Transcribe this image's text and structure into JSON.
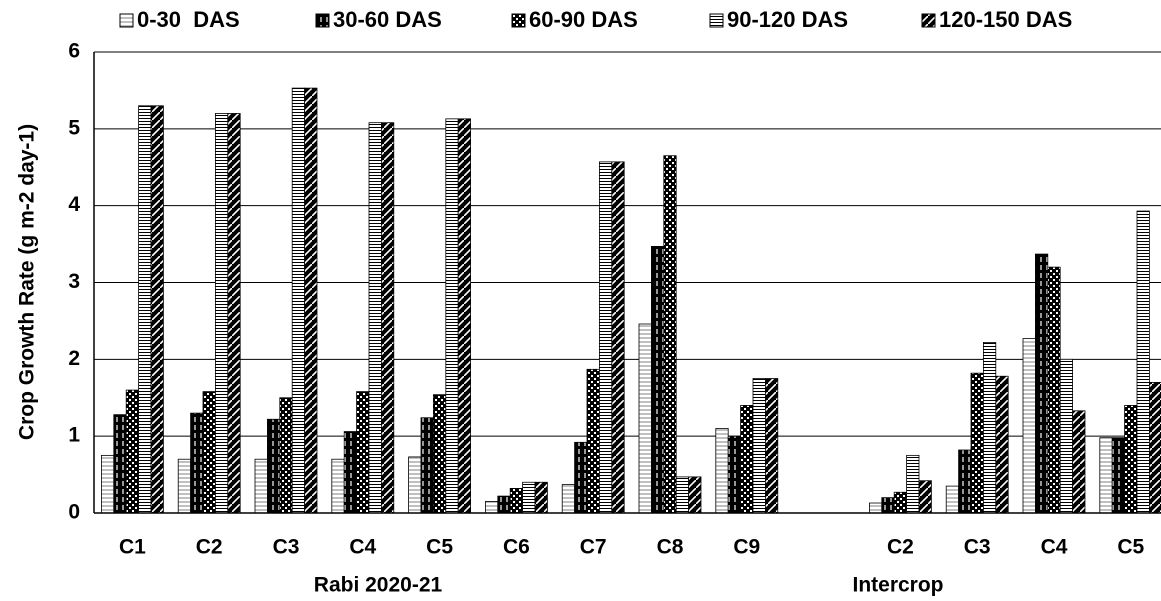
{
  "chart_data": {
    "type": "bar",
    "y_label": "Crop Growth Rate (g m-2 day-1)",
    "group_labels": [
      "Rabi 2020-21",
      "Intercrop"
    ],
    "categories": [
      "C1",
      "C2",
      "C3",
      "C4",
      "C5",
      "C6",
      "C7",
      "C8",
      "C9",
      null,
      "C2",
      "C3",
      "C4",
      "C5"
    ],
    "series": [
      {
        "name": "0-30  DAS",
        "color": "#808080",
        "pattern": "light-lines",
        "values": [
          0.75,
          0.7,
          0.7,
          0.7,
          0.73,
          0.15,
          0.37,
          2.46,
          1.1,
          null,
          0.13,
          0.35,
          2.27,
          0.98
        ]
      },
      {
        "name": "30-60 DAS",
        "color": "#000000",
        "pattern": "dashes",
        "values": [
          1.28,
          1.3,
          1.22,
          1.06,
          1.24,
          0.22,
          0.92,
          3.47,
          1.0,
          null,
          0.2,
          0.82,
          3.37,
          0.98
        ]
      },
      {
        "name": "60-90 DAS",
        "color": "#000000",
        "pattern": "checker",
        "values": [
          1.6,
          1.58,
          1.5,
          1.58,
          1.54,
          0.32,
          1.87,
          4.65,
          1.4,
          null,
          0.27,
          1.82,
          3.2,
          1.4
        ]
      },
      {
        "name": "90-120 DAS",
        "color": "#000000",
        "pattern": "dense-lines",
        "values": [
          5.3,
          5.2,
          5.53,
          5.08,
          5.13,
          0.4,
          4.57,
          0.47,
          1.75,
          null,
          0.75,
          2.22,
          2.0,
          3.93
        ]
      },
      {
        "name": "120-150 DAS",
        "color": "#000000",
        "pattern": "diagonal",
        "values": [
          5.3,
          5.2,
          5.53,
          5.08,
          5.13,
          0.4,
          4.57,
          0.47,
          1.75,
          null,
          0.42,
          1.78,
          1.33,
          1.7
        ]
      }
    ],
    "ylim": [
      0,
      6
    ],
    "yticks": [
      0,
      1,
      2,
      3,
      4,
      5,
      6
    ],
    "grid": true,
    "legend": "top"
  }
}
